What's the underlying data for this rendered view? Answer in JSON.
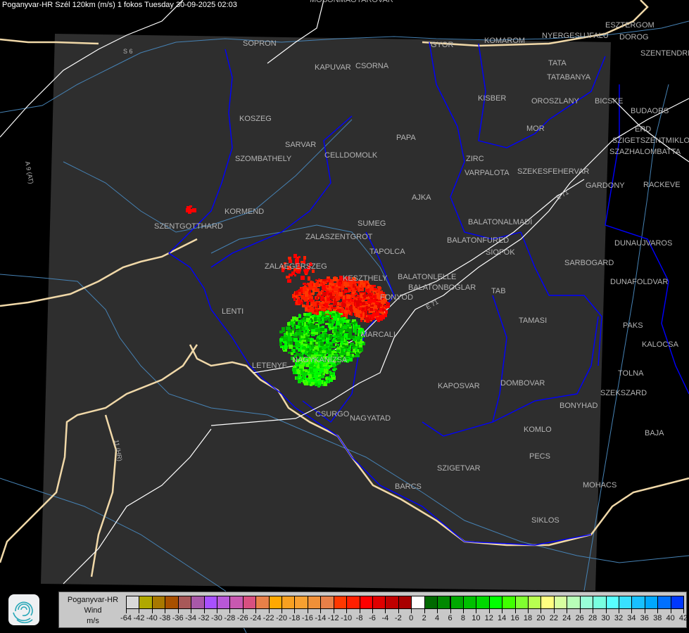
{
  "title": "Poganyvar-HR Szél 120km (m/s) 1 fokos Tuesday 30-09-2025 02:03",
  "map": {
    "colors": {
      "background": "#000000",
      "coverage": "#2e2e2e",
      "border": "#0000ff",
      "country_border": "#f0d8a8",
      "road": "#ffffff",
      "river": "#4682b4",
      "city_label": "#b4b4b4"
    },
    "cities": [
      "MOSONMAGYAROVAR",
      "SOPRON",
      "KAPUVAR",
      "CSORNA",
      "GYOR",
      "KOMAROM",
      "ESZTERGOM",
      "NYERGESUJFALU",
      "DOROG",
      "SZENTENDRE",
      "TATA",
      "TATABANYA",
      "KISBER",
      "OROSZLANY",
      "BICSKE",
      "BUDAORS",
      "MOR",
      "ERD",
      "SZIGETSZENTMIKLOS",
      "SZAZHALOMBATTA",
      "PAPA",
      "ZIRC",
      "VARPALOTA",
      "SZEKESFEHERVAR",
      "GARDONY",
      "RACKEVE",
      "CELLDOMOLK",
      "SARVAR",
      "SZOMBATHELY",
      "KOSZEG",
      "AJKA",
      "KORMEND",
      "SZENTGOTTHARD",
      "SUMEG",
      "ZALASZENTGROT",
      "BALATONALMADI",
      "BALATONFURED",
      "SIOFOK",
      "TAPOLCA",
      "ZALAEGERSZEG",
      "KESZTHELY",
      "BALATONLELLE",
      "BALATONBOGLAR",
      "FONYOD",
      "TAB",
      "SARBOGARD",
      "DUNAUJVAROS",
      "DUNAFOLDVAR",
      "LENTI",
      "TAMASI",
      "MARCALI",
      "PAKS",
      "KALOCSA",
      "LETENYE",
      "NAGYKANIZSA",
      "TOLNA",
      "KAPOSVAR",
      "DOMBOVAR",
      "SZEKSZARD",
      "BONYHAD",
      "CSURGO",
      "NAGYATAD",
      "KOMLO",
      "BAJA",
      "PECS",
      "SZIGETVAR",
      "MOHACS",
      "BARCS",
      "SIKLOS"
    ],
    "roads": [
      "S 6",
      "A 9 (AT)",
      "11 (HR)",
      "E 71",
      "E 71"
    ]
  },
  "legend": {
    "station": "Poganyvar-HR",
    "quantity": "Wind",
    "unit": "m/s",
    "ticks": [
      "-64",
      "-42",
      "-40",
      "-38",
      "-36",
      "-34",
      "-32",
      "-30",
      "-28",
      "-26",
      "-24",
      "-22",
      "-20",
      "-18",
      "-16",
      "-14",
      "-12",
      "-10",
      "-8",
      "-6",
      "-4",
      "-2",
      "0",
      "2",
      "4",
      "6",
      "8",
      "10",
      "12",
      "14",
      "16",
      "18",
      "20",
      "22",
      "24",
      "26",
      "28",
      "30",
      "32",
      "34",
      "36",
      "38",
      "40",
      "42"
    ],
    "colors": [
      "#d8d8d8",
      "#b0a800",
      "#a87800",
      "#a85000",
      "#a85858",
      "#a858a8",
      "#a850ff",
      "#b858d8",
      "#c858b0",
      "#d85080",
      "#e88048",
      "#ffa800",
      "#f8a020",
      "#f8a030",
      "#f09038",
      "#e88048",
      "#ff3800",
      "#ff2000",
      "#ff0000",
      "#e00000",
      "#c00000",
      "#a80000",
      "#ffffff",
      "#006800",
      "#008800",
      "#00a800",
      "#00c000",
      "#00d800",
      "#00ff00",
      "#40ff00",
      "#80ff30",
      "#b8ff50",
      "#ffff80",
      "#d8ffa0",
      "#b8ffb8",
      "#98ffd8",
      "#78ffe0",
      "#58ffff",
      "#38e0ff",
      "#18c0ff",
      "#00a8ff",
      "#0070ff",
      "#0038ff",
      "#0000ff"
    ]
  }
}
